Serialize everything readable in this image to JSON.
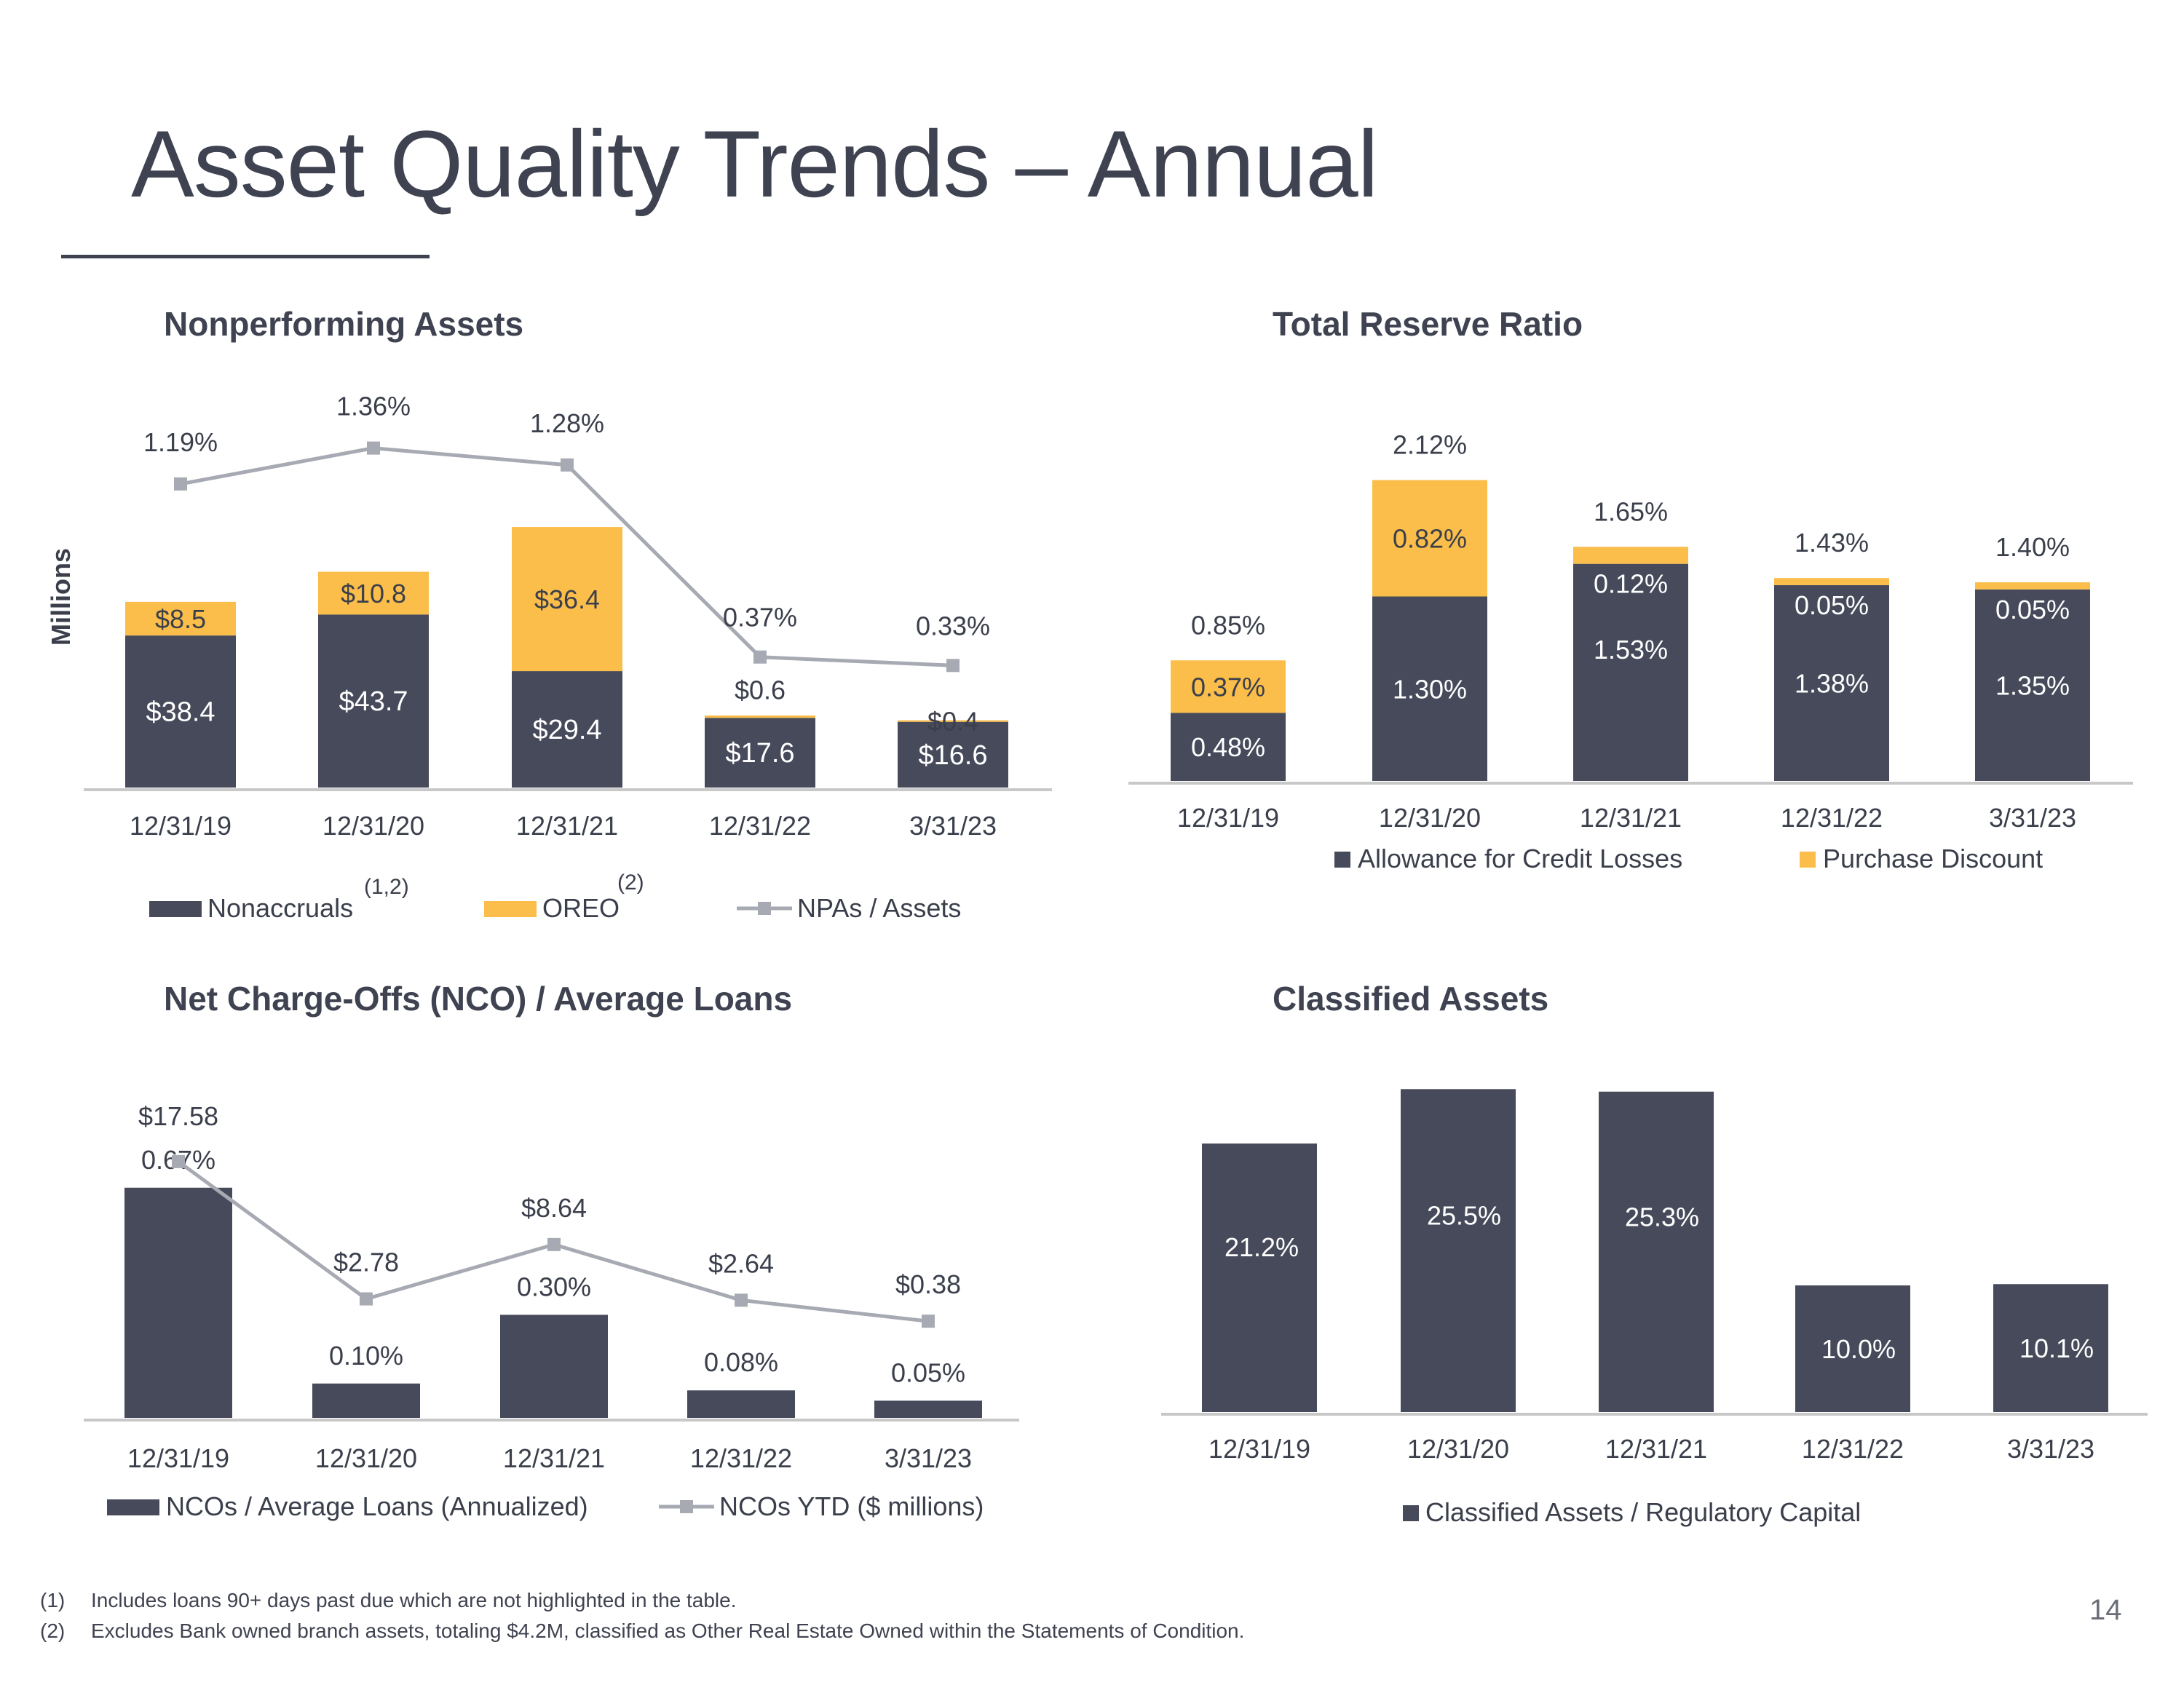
{
  "page": {
    "title": "Asset Quality Trends – Annual",
    "page_number": "14",
    "footnotes": [
      {
        "num": "(1)",
        "text": "Includes loans 90+ days past due which are not highlighted in the table."
      },
      {
        "num": "(2)",
        "text": "Excludes Bank owned branch assets, totaling $4.2M, classified as Other Real Estate Owned within the Statements of Condition."
      }
    ]
  },
  "colors": {
    "dark": "#464a5a",
    "gold": "#fbbe4a",
    "line": "#a7aab2",
    "axis": "#c8c8c8",
    "text": "#3a3f4b"
  },
  "chart_data": [
    {
      "id": "npa",
      "type": "bar",
      "stacked": true,
      "title": "Nonperforming Assets",
      "ylabel": "Millions",
      "categories": [
        "12/31/19",
        "12/31/20",
        "12/31/21",
        "12/31/22",
        "3/31/23"
      ],
      "series": [
        {
          "name": "Nonaccruals",
          "name_sup": "(1,2)",
          "values": [
            38.4,
            43.7,
            29.4,
            17.6,
            16.6
          ],
          "labels": [
            "$38.4",
            "$43.7",
            "$29.4",
            "$17.6",
            "$16.6"
          ]
        },
        {
          "name": "OREO",
          "name_sup": "(2)",
          "values": [
            8.5,
            10.8,
            36.4,
            0.6,
            0.4
          ],
          "labels": [
            "$8.5",
            "$10.8",
            "$36.4",
            "$0.6",
            "$0.4"
          ]
        }
      ],
      "line_series": {
        "name": "NPAs / Assets",
        "values": [
          1.19,
          1.36,
          1.28,
          0.37,
          0.33
        ],
        "labels": [
          "1.19%",
          "1.36%",
          "1.28%",
          "0.37%",
          "0.33%"
        ]
      }
    },
    {
      "id": "reserve",
      "type": "bar",
      "stacked": true,
      "title": "Total Reserve Ratio",
      "categories": [
        "12/31/19",
        "12/31/20",
        "12/31/21",
        "12/31/22",
        "3/31/23"
      ],
      "series": [
        {
          "name": "Allowance for Credit Losses",
          "values": [
            0.48,
            1.3,
            1.53,
            1.38,
            1.35
          ],
          "labels": [
            "0.48%",
            "1.30%",
            "1.53%",
            "1.38%",
            "1.35%"
          ]
        },
        {
          "name": "Purchase Discount",
          "values": [
            0.37,
            0.82,
            0.12,
            0.05,
            0.05
          ],
          "labels": [
            "0.37%",
            "0.82%",
            "0.12%",
            "0.05%",
            "0.05%"
          ]
        }
      ],
      "totals": [
        "0.85%",
        "2.12%",
        "1.65%",
        "1.43%",
        "1.40%"
      ]
    },
    {
      "id": "nco",
      "type": "bar",
      "title": "Net Charge-Offs (NCO) / Average Loans",
      "categories": [
        "12/31/19",
        "12/31/20",
        "12/31/21",
        "12/31/22",
        "3/31/23"
      ],
      "series": [
        {
          "name": "NCOs / Average Loans (Annualized)",
          "values": [
            0.67,
            0.1,
            0.3,
            0.08,
            0.05
          ],
          "labels": [
            "0.67%",
            "0.10%",
            "0.30%",
            "0.08%",
            "0.05%"
          ]
        }
      ],
      "line_series": {
        "name": "NCOs YTD ($ millions)",
        "values": [
          17.58,
          2.78,
          8.64,
          2.64,
          0.38
        ],
        "labels": [
          "$17.58",
          "$2.78",
          "$8.64",
          "$2.64",
          "$0.38"
        ]
      }
    },
    {
      "id": "classified",
      "type": "bar",
      "title": "Classified Assets",
      "categories": [
        "12/31/19",
        "12/31/20",
        "12/31/21",
        "12/31/22",
        "3/31/23"
      ],
      "series": [
        {
          "name": "Classified Assets / Regulatory Capital",
          "values": [
            21.2,
            25.5,
            25.3,
            10.0,
            10.1
          ],
          "labels": [
            "21.2%",
            "25.5%",
            "25.3%",
            "10.0%",
            "10.1%"
          ]
        }
      ]
    }
  ]
}
